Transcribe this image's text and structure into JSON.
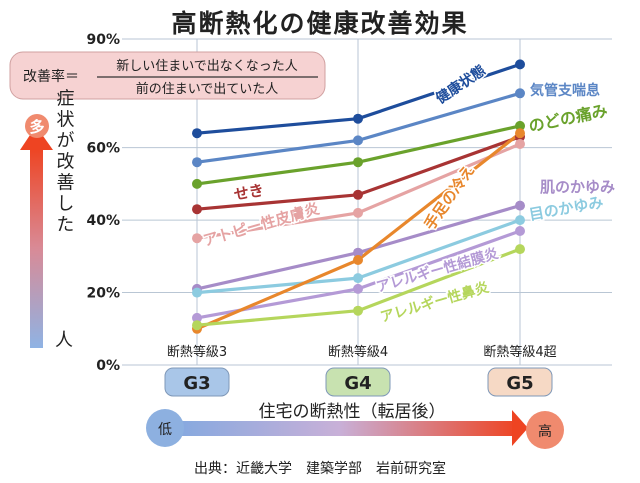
{
  "page": {
    "title": "高断熱化の健康改善効果",
    "source": "出典：近畿大学　建築学部　岩前研究室"
  },
  "formula": {
    "prefix": "改善率＝",
    "numerator": "新しい住まいで出なくなった人",
    "denominator": "前の住まいで出ていた人"
  },
  "y_indicator": {
    "top": "多",
    "bottom": "人",
    "label": "症状が改善した"
  },
  "x_indicator": {
    "left": "低",
    "right": "高",
    "label": "住宅の断熱性（転居後）"
  },
  "grades": [
    "G3",
    "G4",
    "G5"
  ],
  "colors": {
    "g3_badge": "#a9c6e8",
    "g4_badge": "#c8e2b0",
    "g5_badge": "#f6d9c5",
    "circle_top": "#f08a6e",
    "circle_bottom": "#8db0e0"
  },
  "chart_data": {
    "type": "line",
    "categories": [
      "断熱等級3",
      "断熱等級4",
      "断熱等級4超"
    ],
    "y_ticks": [
      "0%",
      "20%",
      "40%",
      "60%",
      "90%"
    ],
    "y_tick_values": [
      0,
      20,
      40,
      60,
      90
    ],
    "ylim": [
      0,
      90
    ],
    "series": [
      {
        "name": "健康状態",
        "values": [
          64,
          68,
          83
        ],
        "color": "#1e4d9c"
      },
      {
        "name": "気管支喘息",
        "values": [
          56,
          62,
          75
        ],
        "color": "#5b86c5"
      },
      {
        "name": "のどの痛み",
        "values": [
          50,
          56,
          66
        ],
        "color": "#6aa22c"
      },
      {
        "name": "せき",
        "values": [
          43,
          47,
          63
        ],
        "color": "#a83434"
      },
      {
        "name": "アトピー性皮膚炎",
        "values": [
          35,
          42,
          61
        ],
        "color": "#e5a3a3"
      },
      {
        "name": "肌のかゆみ",
        "values": [
          21,
          31,
          44
        ],
        "color": "#a68cc8"
      },
      {
        "name": "目のかゆみ",
        "values": [
          20,
          24,
          40
        ],
        "color": "#8ccbe0"
      },
      {
        "name": "アレルギー性結膜炎",
        "values": [
          13,
          21,
          37
        ],
        "color": "#b49ad6"
      },
      {
        "name": "手足の冷え",
        "values": [
          10,
          29,
          64
        ],
        "color": "#e8872c"
      },
      {
        "name": "アレルギー性鼻炎",
        "values": [
          11,
          15,
          32
        ],
        "color": "#b5d65c"
      }
    ]
  }
}
